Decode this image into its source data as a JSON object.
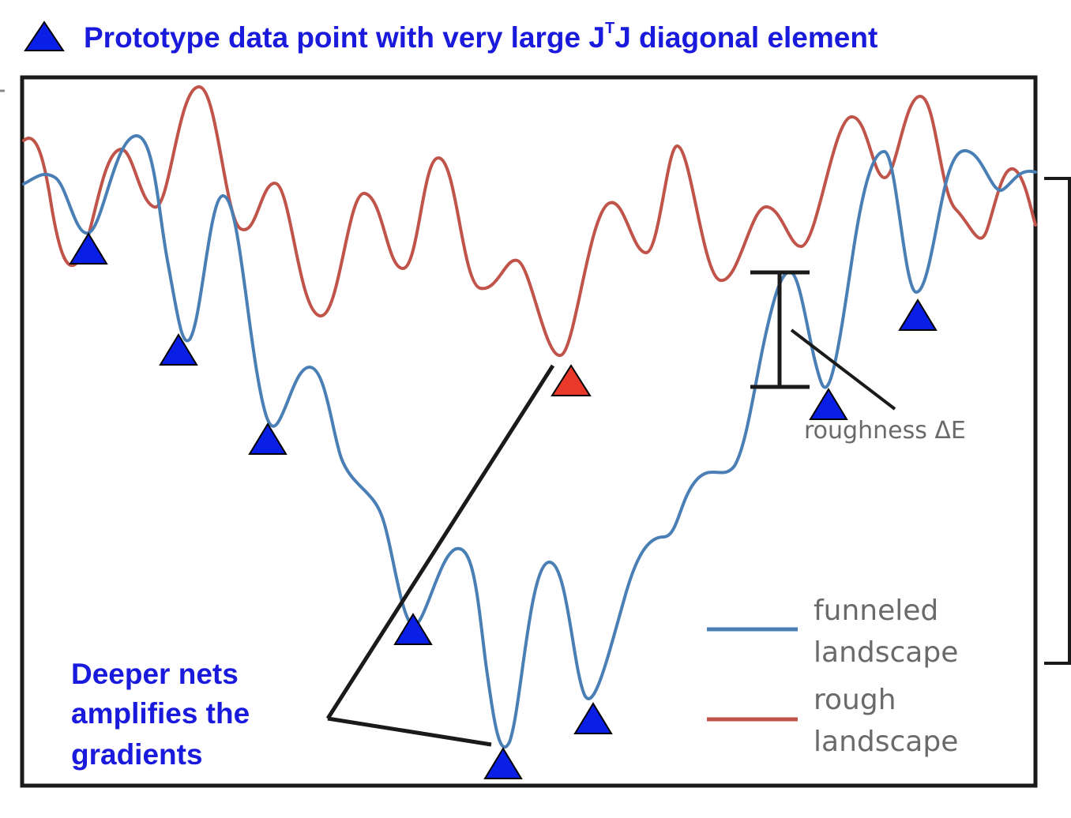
{
  "header": {
    "legend_text": "Prototype data point with very large J",
    "legend_superscript": "T",
    "legend_suffix": "J diagonal element",
    "legend_icon": "blue-triangle-icon",
    "color": "#1a1adc"
  },
  "plot": {
    "roughness_label": "roughness ΔE",
    "legend": {
      "items": [
        {
          "line1": "funneled",
          "line2": "landscape",
          "color": "#4a7fb5"
        },
        {
          "line1": "rough",
          "line2": "landscape",
          "color": "#c0544a"
        }
      ]
    }
  },
  "annotation": {
    "line1": "Deeper nets",
    "line2": "amplifies the",
    "line3": "gradients",
    "color": "#1a1adc"
  },
  "markers": {
    "blue_color": "#0a1fe6",
    "red_color": "#e8392a",
    "blue_icon": "blue-triangle-icon",
    "red_icon": "red-triangle-icon"
  }
}
